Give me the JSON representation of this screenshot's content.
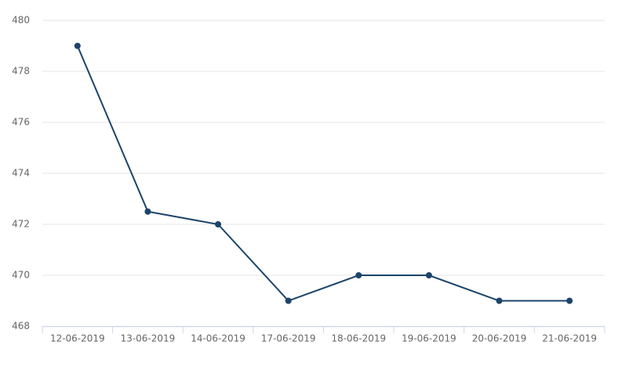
{
  "chart_data": {
    "type": "line",
    "categories": [
      "12-06-2019",
      "13-06-2019",
      "14-06-2019",
      "17-06-2019",
      "18-06-2019",
      "19-06-2019",
      "20-06-2019",
      "21-06-2019"
    ],
    "values": [
      479,
      472.5,
      472,
      469,
      470,
      470,
      469,
      469
    ],
    "color": "#1c4469",
    "ylim": [
      468,
      480
    ],
    "yticks": [
      468,
      470,
      472,
      474,
      476,
      478,
      480
    ],
    "grid": true
  }
}
